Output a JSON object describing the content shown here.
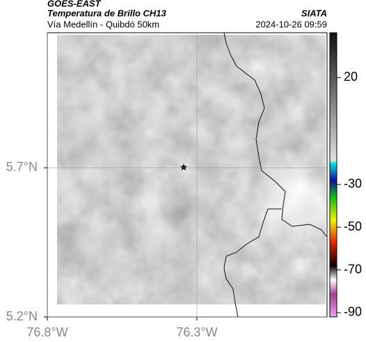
{
  "header": {
    "source": "GOES-EAST",
    "product": "Temperatura de Brillo CH13",
    "region": "Vía Medellín - Quibdó 50km",
    "agency": "SIATA",
    "datetime": "2024-10-26 09:59"
  },
  "map": {
    "xlim": [
      -76.8,
      -75.865
    ],
    "ylim": [
      5.2,
      6.153
    ],
    "xticks": [
      {
        "value": -76.8,
        "label": "76.8°W"
      },
      {
        "value": -76.3,
        "label": "76.3°W"
      }
    ],
    "yticks": [
      {
        "value": 5.2,
        "label": "5.2°N"
      },
      {
        "value": 5.7,
        "label": "5.7°N"
      }
    ],
    "grid": true
  },
  "colorbar": {
    "lim": [
      41,
      -92
    ],
    "ticks": [
      20,
      -30,
      -50,
      -70,
      -90
    ]
  }
}
